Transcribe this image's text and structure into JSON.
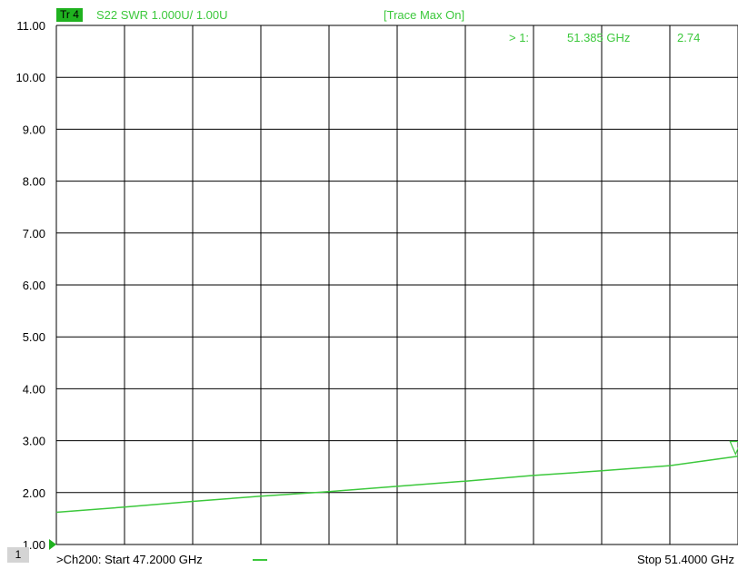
{
  "header": {
    "trace_badge": "Tr 4",
    "trace_info": "S22 SWR 1.000U/  1.00U",
    "trace_max": "[Trace Max On]"
  },
  "footer": {
    "channel_number": "1",
    "channel_info": ">Ch200:  Start  47.2000 GHz",
    "stop": "Stop  51.4000 GHz"
  },
  "colors": {
    "trace": "#3cc83c",
    "badge": "#1fb21f",
    "grid": "#000000",
    "marker_triangle": "#1fb21f"
  },
  "chart_data": {
    "type": "line",
    "title": "",
    "xlabel": "",
    "ylabel": "",
    "xlim": [
      47.2,
      51.4
    ],
    "ylim": [
      1.0,
      11.0
    ],
    "x_unit": "GHz",
    "y_tick_labels": [
      "11.00",
      "10.00",
      "9.00",
      "8.00",
      "7.00",
      "6.00",
      "5.00",
      "4.00",
      "3.00",
      "2.00",
      "1.00"
    ],
    "grid": true,
    "x_divisions": 10,
    "series": [
      {
        "x": [
          47.2,
          47.62,
          48.04,
          48.46,
          48.88,
          49.3,
          49.72,
          50.14,
          50.56,
          50.98,
          51.4
        ],
        "values": [
          1.62,
          1.72,
          1.83,
          1.93,
          2.02,
          2.12,
          2.22,
          2.33,
          2.42,
          2.52,
          2.7
        ]
      }
    ],
    "marker": {
      "label": "> 1:",
      "x_text": "51.385 GHz",
      "y_text": "2.74",
      "x": 51.385,
      "y": 2.74
    },
    "reference_marker_value": 1.0
  }
}
